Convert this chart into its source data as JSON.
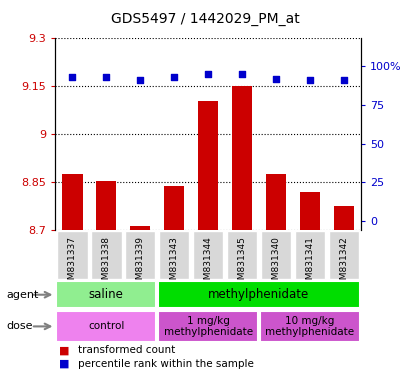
{
  "title": "GDS5497 / 1442029_PM_at",
  "samples": [
    "GSM831337",
    "GSM831338",
    "GSM831339",
    "GSM831343",
    "GSM831344",
    "GSM831345",
    "GSM831340",
    "GSM831341",
    "GSM831342"
  ],
  "bar_values": [
    8.875,
    8.855,
    8.715,
    8.84,
    9.105,
    9.15,
    8.875,
    8.82,
    8.775
  ],
  "percentile_values": [
    93,
    93,
    91,
    93,
    95,
    95,
    92,
    91,
    91
  ],
  "ylim": [
    8.7,
    9.3
  ],
  "yticks": [
    8.7,
    8.85,
    9.0,
    9.15,
    9.3
  ],
  "ytick_labels": [
    "8.7",
    "8.85",
    "9",
    "9.15",
    "9.3"
  ],
  "right_yticks": [
    0,
    25,
    50,
    75,
    100
  ],
  "right_ytick_labels": [
    "0",
    "25",
    "50",
    "75",
    "100%"
  ],
  "bar_color": "#cc0000",
  "dot_color": "#0000cc",
  "axis_left_color": "#cc0000",
  "axis_right_color": "#0000cc",
  "grid_color": "#000000",
  "bar_width": 0.6,
  "agent_groups": [
    {
      "label": "saline",
      "start": 0,
      "end": 3,
      "color": "#90ee90"
    },
    {
      "label": "methylphenidate",
      "start": 3,
      "end": 9,
      "color": "#00dd00"
    }
  ],
  "dose_groups": [
    {
      "label": "control",
      "start": 0,
      "end": 3,
      "color": "#ee82ee"
    },
    {
      "label": "1 mg/kg\nmethylphenidate",
      "start": 3,
      "end": 6,
      "color": "#cc55cc"
    },
    {
      "label": "10 mg/kg\nmethylphenidate",
      "start": 6,
      "end": 9,
      "color": "#cc55cc"
    }
  ],
  "legend_items": [
    {
      "color": "#cc0000",
      "label": "transformed count"
    },
    {
      "color": "#0000cc",
      "label": "percentile rank within the sample"
    }
  ],
  "agent_label": "agent",
  "dose_label": "dose"
}
